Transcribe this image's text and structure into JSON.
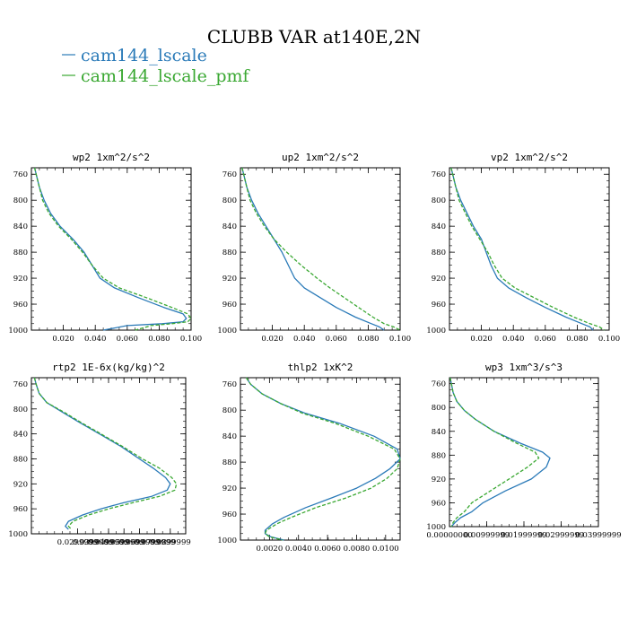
{
  "title": "CLUBB VAR at140E,2N",
  "colors": {
    "series1": "#2a7ab8",
    "series2": "#3aa832"
  },
  "legend": [
    {
      "name": "cam144_lscale",
      "color": "#2a7ab8",
      "dash": "solid"
    },
    {
      "name": "cam144_lscale_pmf",
      "color": "#3aa832",
      "dash": "dashed"
    }
  ],
  "chart_data": [
    {
      "type": "line",
      "title": "wp2  1xm^2/s^2",
      "xlim": [
        0.0,
        0.1
      ],
      "ylim": [
        1000,
        750
      ],
      "xticks": [
        0.02,
        0.04,
        0.06,
        0.08,
        0.1
      ],
      "xtick_labels": [
        "0.020",
        "0.040",
        "0.060",
        "0.080",
        "0.100"
      ],
      "yticks": [
        760,
        800,
        840,
        880,
        920,
        960,
        1000
      ],
      "series": [
        {
          "name": "cam144_lscale",
          "y": [
            750,
            760,
            780,
            800,
            820,
            840,
            860,
            880,
            900,
            920,
            935,
            950,
            965,
            975,
            982,
            987,
            990,
            993,
            1000
          ],
          "x": [
            0.002,
            0.003,
            0.005,
            0.008,
            0.012,
            0.018,
            0.026,
            0.033,
            0.038,
            0.043,
            0.052,
            0.067,
            0.083,
            0.095,
            0.097,
            0.095,
            0.082,
            0.06,
            0.045
          ]
        },
        {
          "name": "cam144_lscale_pmf",
          "y": [
            750,
            760,
            780,
            800,
            820,
            840,
            860,
            880,
            900,
            920,
            935,
            950,
            965,
            975,
            982,
            987,
            990,
            993,
            1000
          ],
          "x": [
            0.002,
            0.003,
            0.005,
            0.007,
            0.011,
            0.017,
            0.025,
            0.032,
            0.038,
            0.045,
            0.055,
            0.072,
            0.088,
            0.098,
            0.1,
            0.098,
            0.088,
            0.075,
            0.065
          ]
        }
      ]
    },
    {
      "type": "line",
      "title": "up2  1xm^2/s^2",
      "xlim": [
        0.0,
        0.1
      ],
      "ylim": [
        1000,
        750
      ],
      "xticks": [
        0.02,
        0.04,
        0.06,
        0.08,
        0.1
      ],
      "xtick_labels": [
        "0.020",
        "0.040",
        "0.060",
        "0.080",
        "0.100"
      ],
      "yticks": [
        760,
        800,
        840,
        880,
        920,
        960,
        1000
      ],
      "series": [
        {
          "name": "cam144_lscale",
          "y": [
            750,
            760,
            780,
            800,
            820,
            840,
            860,
            880,
            900,
            920,
            935,
            950,
            965,
            980,
            990,
            995,
            1000
          ],
          "x": [
            0.001,
            0.002,
            0.004,
            0.007,
            0.011,
            0.016,
            0.021,
            0.026,
            0.03,
            0.034,
            0.04,
            0.05,
            0.06,
            0.072,
            0.082,
            0.087,
            0.09
          ]
        },
        {
          "name": "cam144_lscale_pmf",
          "y": [
            750,
            760,
            780,
            800,
            820,
            840,
            860,
            880,
            900,
            920,
            935,
            950,
            965,
            980,
            990,
            995,
            1000
          ],
          "x": [
            0.001,
            0.002,
            0.004,
            0.006,
            0.01,
            0.015,
            0.021,
            0.029,
            0.038,
            0.048,
            0.056,
            0.065,
            0.074,
            0.083,
            0.09,
            0.096,
            0.1
          ]
        }
      ]
    },
    {
      "type": "line",
      "title": "vp2  1xm^2/s^2",
      "xlim": [
        0.0,
        0.1
      ],
      "ylim": [
        1000,
        750
      ],
      "xticks": [
        0.02,
        0.04,
        0.06,
        0.08,
        0.1
      ],
      "xtick_labels": [
        "0.020",
        "0.040",
        "0.060",
        "0.080",
        "0.100"
      ],
      "yticks": [
        760,
        800,
        840,
        880,
        920,
        960,
        1000
      ],
      "series": [
        {
          "name": "cam144_lscale",
          "y": [
            750,
            760,
            780,
            800,
            820,
            840,
            860,
            880,
            900,
            920,
            935,
            950,
            965,
            980,
            990,
            995,
            1000
          ],
          "x": [
            0.001,
            0.002,
            0.004,
            0.007,
            0.011,
            0.015,
            0.02,
            0.023,
            0.026,
            0.03,
            0.037,
            0.048,
            0.06,
            0.073,
            0.083,
            0.088,
            0.09
          ]
        },
        {
          "name": "cam144_lscale_pmf",
          "y": [
            750,
            760,
            780,
            800,
            820,
            840,
            860,
            880,
            900,
            920,
            935,
            950,
            965,
            980,
            990,
            995,
            1000
          ],
          "x": [
            0.001,
            0.002,
            0.004,
            0.006,
            0.01,
            0.014,
            0.019,
            0.024,
            0.028,
            0.033,
            0.041,
            0.053,
            0.065,
            0.078,
            0.088,
            0.094,
            0.097
          ]
        }
      ]
    },
    {
      "type": "line",
      "title": "rtp2  1E-6x(kg/kg)^2",
      "xlim": [
        0.0,
        0.1
      ],
      "ylim": [
        1000,
        750
      ],
      "xticks": [
        0.03,
        0.04,
        0.05,
        0.06,
        0.07,
        0.08,
        0.09
      ],
      "xtick_labels": [
        "0.0299999",
        "0.0399999",
        "0.0499999",
        "0.0599999",
        "0.0699999",
        "0.0799999",
        "0.0899999"
      ],
      "yticks": [
        760,
        800,
        840,
        880,
        920,
        960,
        1000
      ],
      "series": [
        {
          "name": "cam144_lscale",
          "y": [
            750,
            760,
            775,
            790,
            805,
            820,
            840,
            860,
            880,
            895,
            910,
            920,
            930,
            940,
            950,
            960,
            970,
            980,
            988,
            993
          ],
          "x": [
            0.002,
            0.003,
            0.005,
            0.01,
            0.02,
            0.03,
            0.044,
            0.058,
            0.07,
            0.079,
            0.087,
            0.09,
            0.088,
            0.078,
            0.06,
            0.045,
            0.033,
            0.024,
            0.022,
            0.024
          ]
        },
        {
          "name": "cam144_lscale_pmf",
          "y": [
            750,
            760,
            775,
            790,
            805,
            820,
            840,
            860,
            880,
            895,
            910,
            920,
            930,
            940,
            950,
            960,
            970,
            980,
            988,
            993
          ],
          "x": [
            0.002,
            0.003,
            0.005,
            0.01,
            0.021,
            0.031,
            0.045,
            0.059,
            0.072,
            0.083,
            0.091,
            0.094,
            0.093,
            0.083,
            0.066,
            0.05,
            0.037,
            0.027,
            0.024,
            0.026
          ]
        }
      ]
    },
    {
      "type": "line",
      "title": "thlp2  1xK^2",
      "xlim": [
        0.0,
        0.011
      ],
      "ylim": [
        1000,
        750
      ],
      "xticks": [
        0.002,
        0.004,
        0.006,
        0.008,
        0.01
      ],
      "xtick_labels": [
        "0.0020",
        "0.0040",
        "0.0060",
        "0.0080",
        "0.0100"
      ],
      "yticks": [
        760,
        800,
        840,
        880,
        920,
        960,
        1000
      ],
      "series": [
        {
          "name": "cam144_lscale",
          "y": [
            750,
            760,
            775,
            790,
            805,
            820,
            840,
            860,
            875,
            890,
            905,
            920,
            935,
            950,
            965,
            975,
            985,
            990,
            995,
            1000
          ],
          "x": [
            0.0004,
            0.0007,
            0.0015,
            0.0028,
            0.0045,
            0.0068,
            0.0092,
            0.0108,
            0.011,
            0.0103,
            0.0093,
            0.008,
            0.0063,
            0.0045,
            0.003,
            0.0022,
            0.0017,
            0.0017,
            0.0021,
            0.003
          ]
        },
        {
          "name": "cam144_lscale_pmf",
          "y": [
            750,
            760,
            775,
            790,
            805,
            820,
            840,
            860,
            875,
            890,
            905,
            920,
            935,
            950,
            965,
            975,
            985,
            990,
            995,
            1000
          ],
          "x": [
            0.0004,
            0.0007,
            0.0015,
            0.0028,
            0.0043,
            0.0065,
            0.0088,
            0.0106,
            0.011,
            0.0108,
            0.0101,
            0.009,
            0.0073,
            0.0052,
            0.0035,
            0.0025,
            0.0018,
            0.0017,
            0.002,
            0.0029
          ]
        }
      ]
    },
    {
      "type": "line",
      "title": "wp3  1xm^3/s^3",
      "xlim": [
        0.0,
        0.04
      ],
      "ylim": [
        1000,
        750
      ],
      "xticks": [
        0.0,
        0.01,
        0.02,
        0.03,
        0.04
      ],
      "xtick_labels": [
        "0.00000000",
        "0.00999999",
        "0.01999999",
        "0.02999999",
        "0.03999999"
      ],
      "yticks": [
        760,
        800,
        840,
        880,
        920,
        960,
        1000
      ],
      "series": [
        {
          "name": "cam144_lscale",
          "y": [
            750,
            760,
            775,
            790,
            805,
            820,
            840,
            860,
            875,
            885,
            900,
            920,
            940,
            960,
            975,
            985,
            993,
            1000
          ],
          "x": [
            0.0002,
            0.0005,
            0.001,
            0.002,
            0.004,
            0.007,
            0.012,
            0.019,
            0.025,
            0.027,
            0.026,
            0.022,
            0.015,
            0.009,
            0.006,
            0.003,
            0.0015,
            0.0005
          ]
        },
        {
          "name": "cam144_lscale_pmf",
          "y": [
            750,
            760,
            775,
            790,
            805,
            820,
            840,
            860,
            875,
            885,
            900,
            920,
            940,
            960,
            975,
            985,
            993,
            1000
          ],
          "x": [
            0.0002,
            0.0005,
            0.001,
            0.002,
            0.004,
            0.007,
            0.012,
            0.018,
            0.023,
            0.024,
            0.021,
            0.016,
            0.011,
            0.006,
            0.004,
            0.002,
            0.001,
            0.0005
          ]
        }
      ]
    }
  ]
}
